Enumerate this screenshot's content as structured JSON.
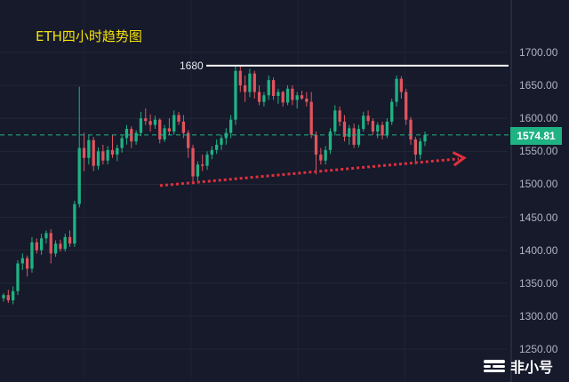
{
  "chart_data": {
    "type": "candlestick",
    "title": "ETH四小时趋势图",
    "y_ticks": [
      1700,
      1650,
      1600,
      1550,
      1500,
      1450,
      1400,
      1350,
      1300,
      1250
    ],
    "ylim": [
      1235,
      1720
    ],
    "current_price": 1574.81,
    "current_price_label": "1574.81",
    "resistance_level": 1680,
    "resistance_label": "1680",
    "support_trendline": {
      "start": [
        180,
        1498
      ],
      "end": [
        522,
        1540
      ]
    },
    "colors": {
      "up": "#1fb283",
      "down": "#e0545f",
      "resistance": "#ffffff",
      "trend": "#e0303d",
      "current": "#1fb283"
    },
    "candles": [
      [
        1327,
        1335,
        1322,
        1332
      ],
      [
        1332,
        1340,
        1320,
        1324
      ],
      [
        1324,
        1345,
        1318,
        1338
      ],
      [
        1338,
        1385,
        1332,
        1380
      ],
      [
        1380,
        1395,
        1370,
        1388
      ],
      [
        1388,
        1392,
        1360,
        1372
      ],
      [
        1372,
        1420,
        1366,
        1412
      ],
      [
        1412,
        1418,
        1395,
        1400
      ],
      [
        1400,
        1425,
        1393,
        1418
      ],
      [
        1418,
        1430,
        1410,
        1426
      ],
      [
        1426,
        1432,
        1380,
        1395
      ],
      [
        1395,
        1415,
        1390,
        1410
      ],
      [
        1410,
        1416,
        1398,
        1402
      ],
      [
        1402,
        1425,
        1398,
        1420
      ],
      [
        1420,
        1430,
        1405,
        1410
      ],
      [
        1410,
        1475,
        1405,
        1470
      ],
      [
        1470,
        1648,
        1465,
        1555
      ],
      [
        1555,
        1578,
        1520,
        1540
      ],
      [
        1540,
        1575,
        1530,
        1567
      ],
      [
        1567,
        1572,
        1520,
        1528
      ],
      [
        1528,
        1556,
        1522,
        1550
      ],
      [
        1550,
        1560,
        1530,
        1536
      ],
      [
        1536,
        1558,
        1530,
        1552
      ],
      [
        1552,
        1575,
        1540,
        1545
      ],
      [
        1545,
        1560,
        1535,
        1555
      ],
      [
        1555,
        1575,
        1548,
        1570
      ],
      [
        1570,
        1590,
        1560,
        1584
      ],
      [
        1584,
        1588,
        1555,
        1565
      ],
      [
        1565,
        1582,
        1560,
        1578
      ],
      [
        1578,
        1610,
        1573,
        1600
      ],
      [
        1600,
        1615,
        1590,
        1596
      ],
      [
        1596,
        1606,
        1580,
        1590
      ],
      [
        1590,
        1604,
        1584,
        1598
      ],
      [
        1598,
        1600,
        1562,
        1568
      ],
      [
        1568,
        1590,
        1564,
        1585
      ],
      [
        1585,
        1600,
        1575,
        1580
      ],
      [
        1580,
        1612,
        1575,
        1605
      ],
      [
        1605,
        1610,
        1590,
        1595
      ],
      [
        1595,
        1605,
        1570,
        1578
      ],
      [
        1578,
        1582,
        1540,
        1555
      ],
      [
        1555,
        1560,
        1500,
        1512
      ],
      [
        1512,
        1535,
        1505,
        1530
      ],
      [
        1530,
        1545,
        1520,
        1528
      ],
      [
        1528,
        1550,
        1522,
        1545
      ],
      [
        1545,
        1558,
        1538,
        1552
      ],
      [
        1552,
        1568,
        1546,
        1560
      ],
      [
        1560,
        1575,
        1552,
        1570
      ],
      [
        1570,
        1585,
        1560,
        1578
      ],
      [
        1578,
        1605,
        1570,
        1598
      ],
      [
        1598,
        1680,
        1590,
        1672
      ],
      [
        1672,
        1680,
        1640,
        1650
      ],
      [
        1650,
        1665,
        1625,
        1640
      ],
      [
        1640,
        1675,
        1632,
        1668
      ],
      [
        1668,
        1672,
        1630,
        1640
      ],
      [
        1640,
        1650,
        1620,
        1625
      ],
      [
        1625,
        1640,
        1618,
        1635
      ],
      [
        1635,
        1665,
        1628,
        1658
      ],
      [
        1658,
        1662,
        1628,
        1634
      ],
      [
        1634,
        1645,
        1622,
        1640
      ],
      [
        1640,
        1642,
        1618,
        1624
      ],
      [
        1624,
        1650,
        1620,
        1645
      ],
      [
        1645,
        1650,
        1620,
        1628
      ],
      [
        1628,
        1640,
        1615,
        1635
      ],
      [
        1635,
        1642,
        1628,
        1630
      ],
      [
        1630,
        1640,
        1618,
        1625
      ],
      [
        1625,
        1640,
        1570,
        1575
      ],
      [
        1575,
        1580,
        1515,
        1545
      ],
      [
        1545,
        1555,
        1530,
        1536
      ],
      [
        1536,
        1558,
        1530,
        1552
      ],
      [
        1552,
        1585,
        1546,
        1580
      ],
      [
        1580,
        1620,
        1574,
        1612
      ],
      [
        1612,
        1618,
        1588,
        1595
      ],
      [
        1595,
        1605,
        1565,
        1572
      ],
      [
        1572,
        1590,
        1560,
        1585
      ],
      [
        1585,
        1592,
        1555,
        1560
      ],
      [
        1560,
        1590,
        1556,
        1584
      ],
      [
        1584,
        1610,
        1580,
        1604
      ],
      [
        1604,
        1612,
        1590,
        1596
      ],
      [
        1596,
        1600,
        1575,
        1580
      ],
      [
        1580,
        1594,
        1570,
        1590
      ],
      [
        1590,
        1595,
        1568,
        1574
      ],
      [
        1574,
        1600,
        1570,
        1595
      ],
      [
        1595,
        1630,
        1590,
        1625
      ],
      [
        1625,
        1665,
        1618,
        1660
      ],
      [
        1660,
        1664,
        1630,
        1640
      ],
      [
        1640,
        1645,
        1590,
        1598
      ],
      [
        1598,
        1602,
        1560,
        1568
      ],
      [
        1568,
        1572,
        1530,
        1545
      ],
      [
        1545,
        1570,
        1538,
        1565
      ],
      [
        1565,
        1580,
        1558,
        1575
      ]
    ],
    "grid": true
  },
  "watermark": {
    "text": "非小号",
    "icon": "feixiaohao-logo-icon"
  }
}
